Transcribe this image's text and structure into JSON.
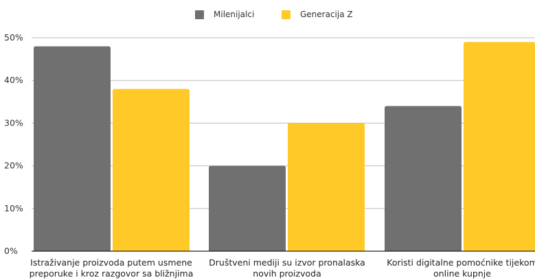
{
  "chart_data": {
    "type": "bar",
    "categories": [
      [
        "Istraživanje proizvoda putem usmene",
        "preporuke i kroz razgovor sa bližnjima"
      ],
      [
        "Društveni mediji su izvor pronalaska",
        "novih proizvoda"
      ],
      [
        "Koristi digitalne pomoćnike tijekom",
        "online kupnje"
      ]
    ],
    "series": [
      {
        "name": "Milenijalci",
        "values": [
          48,
          20,
          34
        ],
        "color": "#707070"
      },
      {
        "name": "Generacija Z",
        "values": [
          38,
          30,
          49
        ],
        "color": "#FFC928"
      }
    ],
    "ylim": [
      0,
      50
    ],
    "yticks": [
      0,
      10,
      20,
      30,
      40,
      50
    ],
    "ytick_labels": [
      "0%",
      "10%",
      "20%",
      "30%",
      "40%",
      "50%"
    ],
    "grid": true,
    "legend_position": "top-center",
    "gridline_color": "#bdbdbd",
    "axis_color": "#222222"
  }
}
